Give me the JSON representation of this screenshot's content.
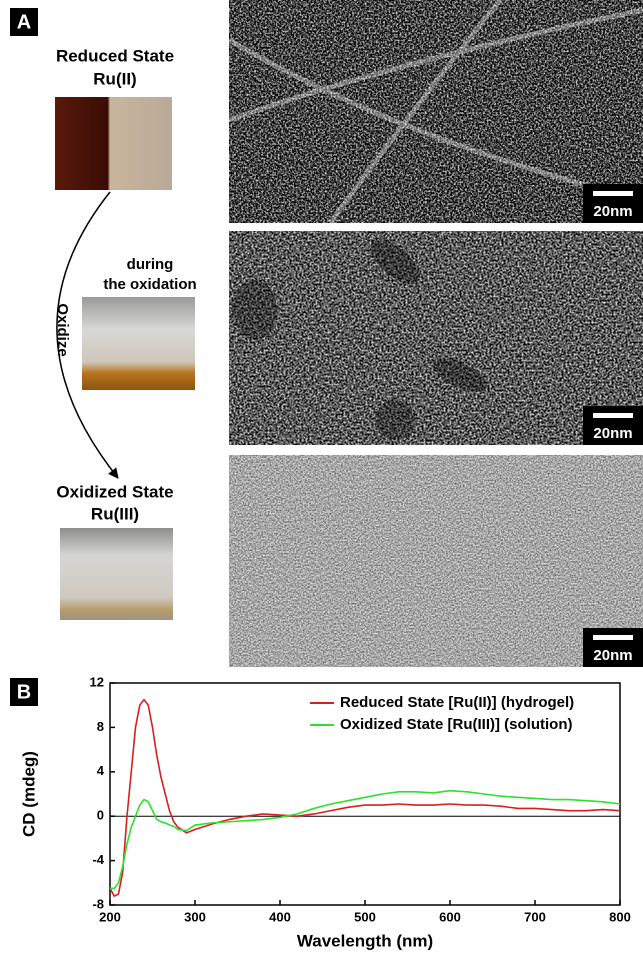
{
  "panel_a": {
    "label": "A",
    "reduced_state": {
      "title": "Reduced State",
      "subtitle": "Ru(II)"
    },
    "during": {
      "line1": "during",
      "line2": "the oxidation"
    },
    "arrow_label": "Oxidize",
    "oxidized_state": {
      "title": "Oxidized State",
      "subtitle": "Ru(III)"
    },
    "scale_bars": [
      "20nm",
      "20nm",
      "20nm"
    ]
  },
  "panel_b": {
    "label": "B"
  },
  "chart_data": {
    "type": "line",
    "x_label": "Wavelength (nm)",
    "y_label": "CD (mdeg)",
    "x": [
      200,
      205,
      210,
      215,
      220,
      225,
      230,
      235,
      240,
      245,
      250,
      255,
      260,
      265,
      270,
      275,
      280,
      290,
      300,
      320,
      340,
      360,
      380,
      400,
      420,
      440,
      460,
      480,
      500,
      520,
      540,
      560,
      580,
      600,
      620,
      640,
      660,
      680,
      700,
      720,
      740,
      760,
      780,
      800
    ],
    "series": [
      {
        "name": "Reduced State [Ru(II)] (hydrogel)",
        "color": "#d62020",
        "values": [
          -6.5,
          -7.2,
          -7,
          -5,
          0,
          4,
          8,
          10,
          10.5,
          10,
          8,
          5.5,
          3.5,
          2,
          0.5,
          -0.5,
          -1,
          -1.5,
          -1.2,
          -0.7,
          -0.3,
          0,
          0.2,
          0.1,
          0,
          0.2,
          0.5,
          0.8,
          1,
          1,
          1.1,
          1,
          1,
          1.1,
          1,
          1,
          0.9,
          0.7,
          0.7,
          0.6,
          0.5,
          0.5,
          0.6,
          0.5
        ]
      },
      {
        "name": "Oxidized State [Ru(III)] (solution)",
        "color": "#2ee02e",
        "values": [
          -6.5,
          -6.5,
          -6,
          -4.5,
          -2.5,
          -1,
          0,
          1,
          1.5,
          1.3,
          0.5,
          -0.3,
          -0.5,
          -0.6,
          -0.8,
          -0.9,
          -1.2,
          -1.3,
          -0.8,
          -0.6,
          -0.5,
          -0.4,
          -0.3,
          -0.1,
          0.2,
          0.7,
          1.1,
          1.4,
          1.7,
          2,
          2.2,
          2.2,
          2.1,
          2.3,
          2.2,
          2.0,
          1.8,
          1.7,
          1.6,
          1.5,
          1.5,
          1.4,
          1.3,
          1.1
        ]
      }
    ],
    "xlim": [
      200,
      800
    ],
    "xticks": [
      200,
      300,
      400,
      500,
      600,
      700,
      800
    ],
    "ylim": [
      -8,
      12
    ],
    "yticks": [
      -8,
      -4,
      0,
      4,
      8,
      12
    ],
    "legend": "upper right"
  }
}
